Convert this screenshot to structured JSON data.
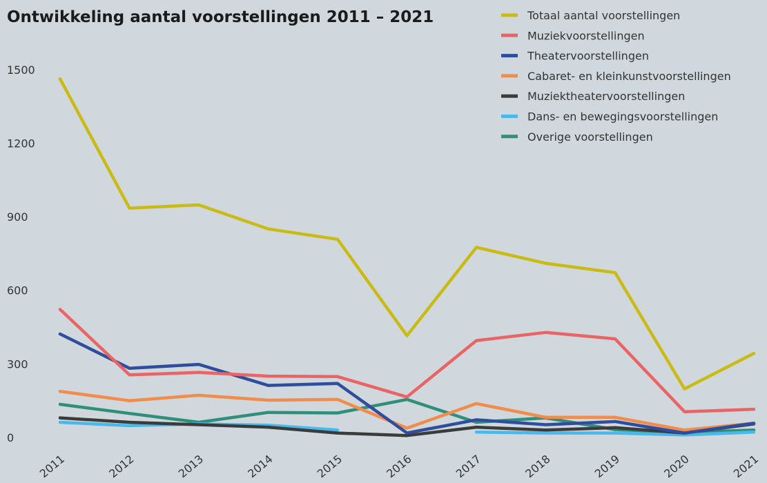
{
  "chart_data": {
    "type": "line",
    "title": "Ontwikkeling aantal voorstellingen 2011 – 2021",
    "xlabel": "",
    "ylabel": "",
    "x": [
      "2011",
      "2012",
      "2013",
      "2014",
      "2015",
      "2016",
      "2017",
      "2018",
      "2019",
      "2020",
      "2021"
    ],
    "yticks": [
      0,
      300,
      600,
      900,
      1200,
      1500
    ],
    "ylim": [
      0,
      1600
    ],
    "grid": false,
    "legend_position": "top-right",
    "series": [
      {
        "name": "Totaal aantal voorstellingen",
        "color": "#c9bb14",
        "values": [
          1462,
          935,
          948,
          850,
          808,
          415,
          775,
          710,
          672,
          198,
          343
        ]
      },
      {
        "name": "Muziekvoorstellingen",
        "color": "#ea6466",
        "values": [
          522,
          255,
          265,
          250,
          248,
          165,
          395,
          428,
          402,
          105,
          115
        ]
      },
      {
        "name": "Theatervoorstellingen",
        "color": "#2e4d9c",
        "values": [
          422,
          282,
          298,
          212,
          220,
          18,
          72,
          52,
          65,
          18,
          58
        ]
      },
      {
        "name": "Cabaret- en kleinkunstvoorstellingen",
        "color": "#f28c4a",
        "values": [
          188,
          150,
          172,
          152,
          155,
          38,
          138,
          82,
          82,
          30,
          58
        ]
      },
      {
        "name": "Muziektheatervoorstellingen",
        "color": "#3b3b3b",
        "values": [
          80,
          62,
          52,
          42,
          18,
          8,
          42,
          30,
          40,
          18,
          55
        ]
      },
      {
        "name": "Dans- en bewegingsvoorstellingen",
        "color": "#4ab8ea",
        "values": [
          62,
          48,
          55,
          50,
          30,
          null,
          22,
          18,
          18,
          10,
          22
        ]
      },
      {
        "name": "Overige voorstellingen",
        "color": "#2f8f7a",
        "values": [
          135,
          98,
          62,
          102,
          100,
          155,
          62,
          80,
          32,
          20,
          30
        ]
      }
    ]
  }
}
